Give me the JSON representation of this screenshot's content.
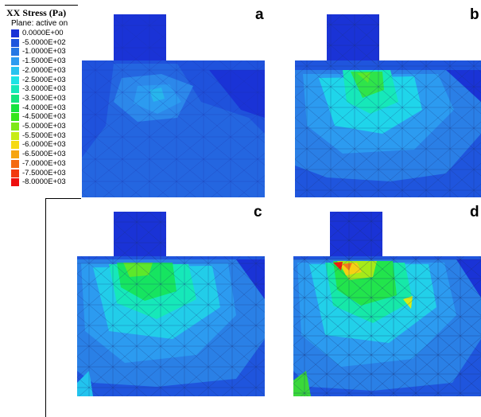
{
  "legend": {
    "title": "XX Stress (Pa)",
    "subtitle": "Plane: active on",
    "entries": [
      {
        "label": "0.0000E+00",
        "color": "#1a33d6"
      },
      {
        "label": "-5.0000E+02",
        "color": "#1e55dd"
      },
      {
        "label": "-1.0000E+03",
        "color": "#2577e4"
      },
      {
        "label": "-1.5000E+03",
        "color": "#2c9bf0"
      },
      {
        "label": "-2.0000E+03",
        "color": "#27c3ef"
      },
      {
        "label": "-2.5000E+03",
        "color": "#1de3e5"
      },
      {
        "label": "-3.0000E+03",
        "color": "#16e8b9"
      },
      {
        "label": "-3.5000E+03",
        "color": "#14e57f"
      },
      {
        "label": "-4.0000E+03",
        "color": "#16e43f"
      },
      {
        "label": "-4.5000E+03",
        "color": "#33e61a"
      },
      {
        "label": "-5.0000E+03",
        "color": "#7ee817"
      },
      {
        "label": "-5.5000E+03",
        "color": "#c7ec17"
      },
      {
        "label": "-6.0000E+03",
        "color": "#f6da14"
      },
      {
        "label": "-6.5000E+03",
        "color": "#f6a512"
      },
      {
        "label": "-7.0000E+03",
        "color": "#f46a10"
      },
      {
        "label": "-7.5000E+03",
        "color": "#f2380f"
      },
      {
        "label": "-8.0000E+03",
        "color": "#ee0f0f"
      }
    ]
  },
  "panels": [
    {
      "id": "a",
      "label": "a"
    },
    {
      "id": "b",
      "label": "b"
    },
    {
      "id": "c",
      "label": "c"
    },
    {
      "id": "d",
      "label": "d"
    }
  ]
}
